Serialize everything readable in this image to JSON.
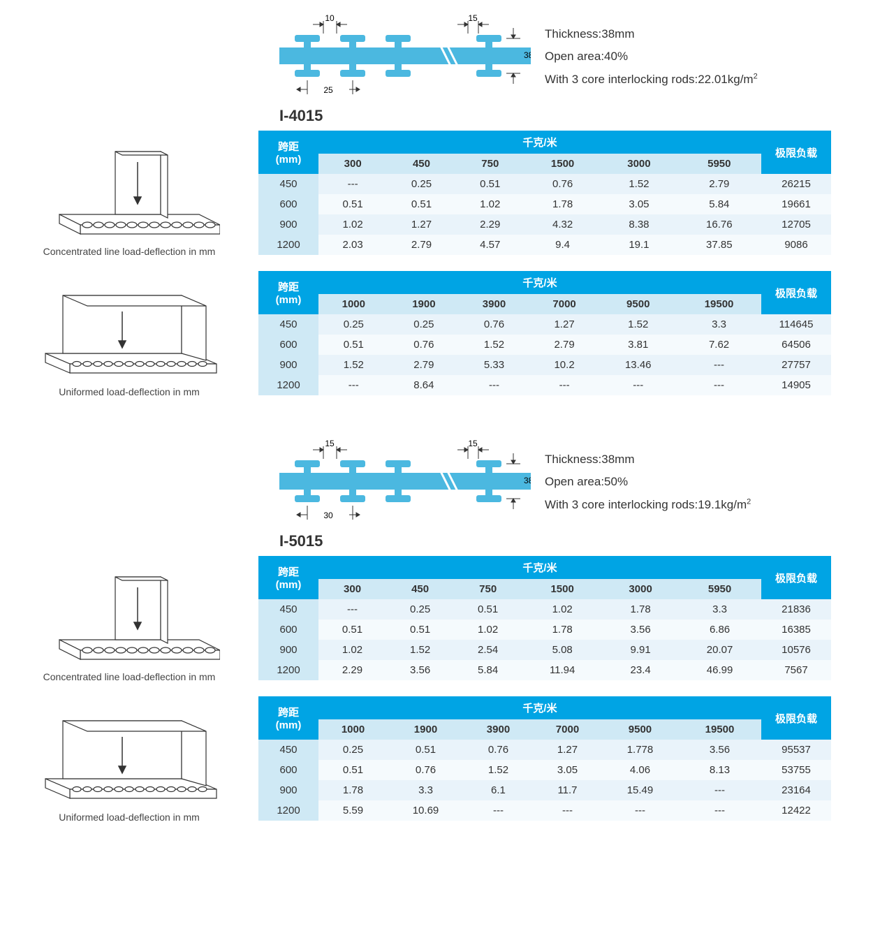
{
  "colors": {
    "header_blue": "#00a4e4",
    "light_blue": "#cfe9f5",
    "row_even": "#e9f3fa",
    "row_odd": "#f5fafd",
    "ibeam_fill": "#4bb8e0",
    "line": "#333333"
  },
  "captions": {
    "concentrated": "Concentrated line load-deflection in mm",
    "uniform": "Uniformed load-deflection in mm"
  },
  "table_labels": {
    "span_cn": "跨距",
    "span_unit": "(mm)",
    "kgm_cn": "千克/米",
    "limit_cn": "极限负载"
  },
  "products": [
    {
      "code": "I-4015",
      "dims": {
        "top_gap": "10",
        "top_gap2": "15",
        "thickness": "38",
        "pitch": "25"
      },
      "spec": {
        "thickness": "Thickness:38mm",
        "open_area": "Open area:40%",
        "rods": "With 3 core interlocking rods:22.01kg/m"
      },
      "tables": [
        {
          "cols": [
            "300",
            "450",
            "750",
            "1500",
            "3000",
            "5950"
          ],
          "spans": [
            "450",
            "600",
            "900",
            "1200"
          ],
          "data": [
            [
              "---",
              "0.25",
              "0.51",
              "0.76",
              "1.52",
              "2.79"
            ],
            [
              "0.51",
              "0.51",
              "1.02",
              "1.78",
              "3.05",
              "5.84"
            ],
            [
              "1.02",
              "1.27",
              "2.29",
              "4.32",
              "8.38",
              "16.76"
            ],
            [
              "2.03",
              "2.79",
              "4.57",
              "9.4",
              "19.1",
              "37.85"
            ]
          ],
          "limits": [
            "26215",
            "19661",
            "12705",
            "9086"
          ]
        },
        {
          "cols": [
            "1000",
            "1900",
            "3900",
            "7000",
            "9500",
            "19500"
          ],
          "spans": [
            "450",
            "600",
            "900",
            "1200"
          ],
          "data": [
            [
              "0.25",
              "0.25",
              "0.76",
              "1.27",
              "1.52",
              "3.3"
            ],
            [
              "0.51",
              "0.76",
              "1.52",
              "2.79",
              "3.81",
              "7.62"
            ],
            [
              "1.52",
              "2.79",
              "5.33",
              "10.2",
              "13.46",
              "---"
            ],
            [
              "---",
              "8.64",
              "---",
              "---",
              "---",
              "---"
            ]
          ],
          "limits": [
            "114645",
            "64506",
            "27757",
            "14905"
          ]
        }
      ]
    },
    {
      "code": "I-5015",
      "dims": {
        "top_gap": "15",
        "top_gap2": "15",
        "thickness": "38",
        "pitch": "30"
      },
      "spec": {
        "thickness": "Thickness:38mm",
        "open_area": "Open area:50%",
        "rods": "With 3 core interlocking rods:19.1kg/m"
      },
      "tables": [
        {
          "cols": [
            "300",
            "450",
            "750",
            "1500",
            "3000",
            "5950"
          ],
          "spans": [
            "450",
            "600",
            "900",
            "1200"
          ],
          "data": [
            [
              "---",
              "0.25",
              "0.51",
              "1.02",
              "1.78",
              "3.3"
            ],
            [
              "0.51",
              "0.51",
              "1.02",
              "1.78",
              "3.56",
              "6.86"
            ],
            [
              "1.02",
              "1.52",
              "2.54",
              "5.08",
              "9.91",
              "20.07"
            ],
            [
              "2.29",
              "3.56",
              "5.84",
              "11.94",
              "23.4",
              "46.99"
            ]
          ],
          "limits": [
            "21836",
            "16385",
            "10576",
            "7567"
          ]
        },
        {
          "cols": [
            "1000",
            "1900",
            "3900",
            "7000",
            "9500",
            "19500"
          ],
          "spans": [
            "450",
            "600",
            "900",
            "1200"
          ],
          "data": [
            [
              "0.25",
              "0.51",
              "0.76",
              "1.27",
              "1.778",
              "3.56"
            ],
            [
              "0.51",
              "0.76",
              "1.52",
              "3.05",
              "4.06",
              "8.13"
            ],
            [
              "1.78",
              "3.3",
              "6.1",
              "11.7",
              "15.49",
              "---"
            ],
            [
              "5.59",
              "10.69",
              "---",
              "---",
              "---",
              "---"
            ]
          ],
          "limits": [
            "95537",
            "53755",
            "23164",
            "12422"
          ]
        }
      ]
    }
  ]
}
